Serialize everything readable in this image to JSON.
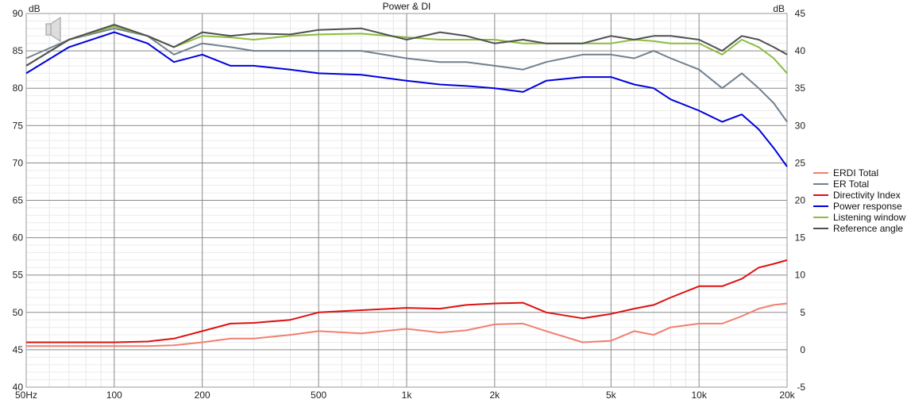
{
  "chart_data": {
    "type": "line",
    "title": "Power & DI",
    "x_scale": "log",
    "xlim": [
      50,
      20000
    ],
    "ylim_left": [
      40,
      90
    ],
    "ylim_right": [
      -5,
      45
    ],
    "ylabel_left": "dB",
    "ylabel_right": "dB",
    "x_ticks": [
      {
        "value": 50,
        "label": "50Hz"
      },
      {
        "value": 100,
        "label": "100"
      },
      {
        "value": 200,
        "label": "200"
      },
      {
        "value": 500,
        "label": "500"
      },
      {
        "value": 1000,
        "label": "1k"
      },
      {
        "value": 2000,
        "label": "2k"
      },
      {
        "value": 5000,
        "label": "5k"
      },
      {
        "value": 10000,
        "label": "10k"
      },
      {
        "value": 20000,
        "label": "20k"
      }
    ],
    "y_ticks_left": [
      90,
      85,
      80,
      75,
      70,
      65,
      60,
      55,
      50,
      45,
      40
    ],
    "y_ticks_right": [
      45,
      40,
      35,
      30,
      25,
      20,
      15,
      10,
      5,
      0,
      -5
    ],
    "grid": true,
    "legend_position": "right",
    "x": [
      50,
      70,
      100,
      130,
      160,
      200,
      250,
      300,
      400,
      500,
      700,
      1000,
      1300,
      1600,
      2000,
      2500,
      3000,
      4000,
      5000,
      6000,
      7000,
      8000,
      10000,
      12000,
      14000,
      16000,
      18000,
      20000
    ],
    "series": [
      {
        "name": "ERDI Total",
        "color": "#f08070",
        "axis": "right",
        "values": [
          0.5,
          0.5,
          0.5,
          0.5,
          0.6,
          1.0,
          1.5,
          1.5,
          2.0,
          2.5,
          2.2,
          2.8,
          2.3,
          2.6,
          3.4,
          3.5,
          2.5,
          1.0,
          1.2,
          2.5,
          2.0,
          3.0,
          3.5,
          3.5,
          4.5,
          5.5,
          6.0,
          6.2
        ]
      },
      {
        "name": "ER Total",
        "color": "#708090",
        "axis": "left",
        "values": [
          84.0,
          86.5,
          88.0,
          87.0,
          84.5,
          86.0,
          85.5,
          85.0,
          85.0,
          85.0,
          85.0,
          84.0,
          83.5,
          83.5,
          83.0,
          82.5,
          83.5,
          84.5,
          84.5,
          84.0,
          85.0,
          84.0,
          82.5,
          80.0,
          82.0,
          80.0,
          78.0,
          75.5
        ]
      },
      {
        "name": "Directivity Index",
        "color": "#dd1111",
        "axis": "right",
        "values": [
          1.0,
          1.0,
          1.0,
          1.1,
          1.5,
          2.5,
          3.5,
          3.6,
          4.0,
          5.0,
          5.3,
          5.6,
          5.5,
          6.0,
          6.2,
          6.3,
          5.0,
          4.2,
          4.8,
          5.5,
          6.0,
          7.0,
          8.5,
          8.5,
          9.5,
          11.0,
          11.5,
          12.0
        ]
      },
      {
        "name": "Power response",
        "color": "#0000dd",
        "axis": "left",
        "values": [
          82.0,
          85.5,
          87.5,
          86.0,
          83.5,
          84.5,
          83.0,
          83.0,
          82.5,
          82.0,
          81.8,
          81.0,
          80.5,
          80.3,
          80.0,
          79.5,
          81.0,
          81.5,
          81.5,
          80.5,
          80.0,
          78.5,
          77.0,
          75.5,
          76.5,
          74.5,
          72.0,
          69.5
        ]
      },
      {
        "name": "Listening window",
        "color": "#8cbc3c",
        "axis": "left",
        "values": [
          83.0,
          86.5,
          88.3,
          87.0,
          85.5,
          87.0,
          86.8,
          86.5,
          87.0,
          87.2,
          87.3,
          86.8,
          86.5,
          86.5,
          86.5,
          86.0,
          86.0,
          86.0,
          86.0,
          86.5,
          86.3,
          86.0,
          86.0,
          84.5,
          86.5,
          85.5,
          84.0,
          82.0
        ]
      },
      {
        "name": "Reference angle",
        "color": "#505050",
        "axis": "left",
        "values": [
          83.0,
          86.5,
          88.5,
          87.0,
          85.5,
          87.5,
          87.0,
          87.3,
          87.2,
          87.8,
          88.0,
          86.5,
          87.5,
          87.0,
          86.0,
          86.5,
          86.0,
          86.0,
          87.0,
          86.5,
          87.0,
          87.0,
          86.5,
          85.0,
          87.0,
          86.5,
          85.5,
          84.5
        ]
      }
    ]
  }
}
